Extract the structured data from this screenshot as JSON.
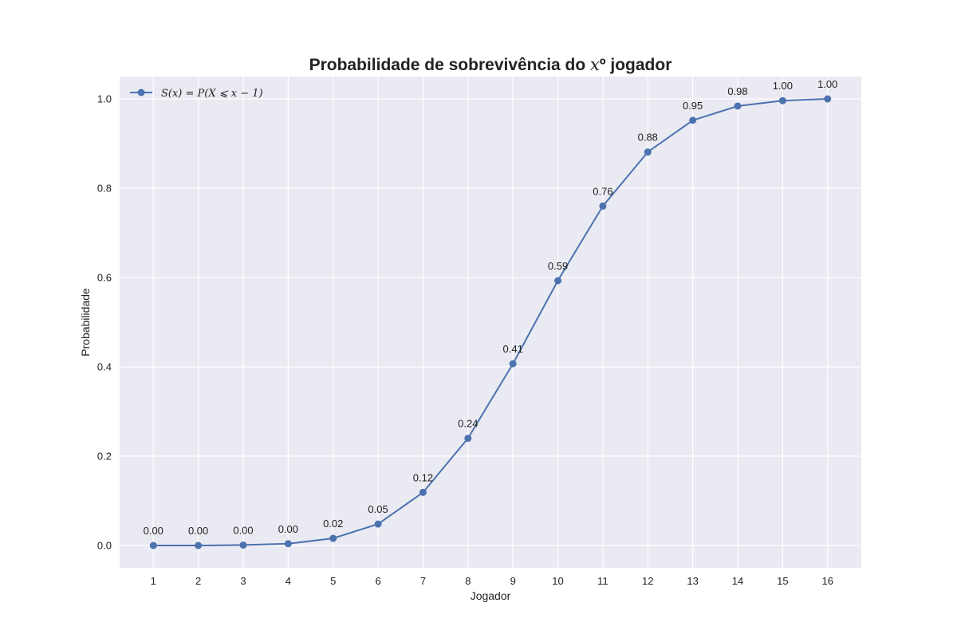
{
  "chart_data": {
    "type": "line",
    "title_prefix": "Probabilidade de sobrevivência do ",
    "title_variable": "x",
    "title_suffix": "º jogador",
    "xlabel": "Jogador",
    "ylabel": "Probabilidade",
    "x": [
      1,
      2,
      3,
      4,
      5,
      6,
      7,
      8,
      9,
      10,
      11,
      12,
      13,
      14,
      15,
      16
    ],
    "series": [
      {
        "name": "S(x) = P(X ⩽ x − 1)",
        "values": [
          0.0,
          0.0,
          0.001,
          0.004,
          0.016,
          0.048,
          0.119,
          0.24,
          0.407,
          0.593,
          0.76,
          0.881,
          0.952,
          0.984,
          0.996,
          1.0
        ],
        "labels": [
          "0.00",
          "0.00",
          "0.00",
          "0.00",
          "0.02",
          "0.05",
          "0.12",
          "0.24",
          "0.41",
          "0.59",
          "0.76",
          "0.88",
          "0.95",
          "0.98",
          "1.00",
          "1.00"
        ],
        "color": "#4c72b0"
      }
    ],
    "xticks": [
      "1",
      "2",
      "3",
      "4",
      "5",
      "6",
      "7",
      "8",
      "9",
      "10",
      "11",
      "12",
      "13",
      "14",
      "15",
      "16"
    ],
    "yticks": [
      "0.0",
      "0.2",
      "0.4",
      "0.6",
      "0.8",
      "1.0"
    ],
    "xlim": [
      0.25,
      16.75
    ],
    "ylim": [
      -0.05,
      1.05
    ],
    "grid": true,
    "legend_position": "top-left",
    "background_color": "#eaeaf2",
    "grid_color": "#ffffff"
  }
}
